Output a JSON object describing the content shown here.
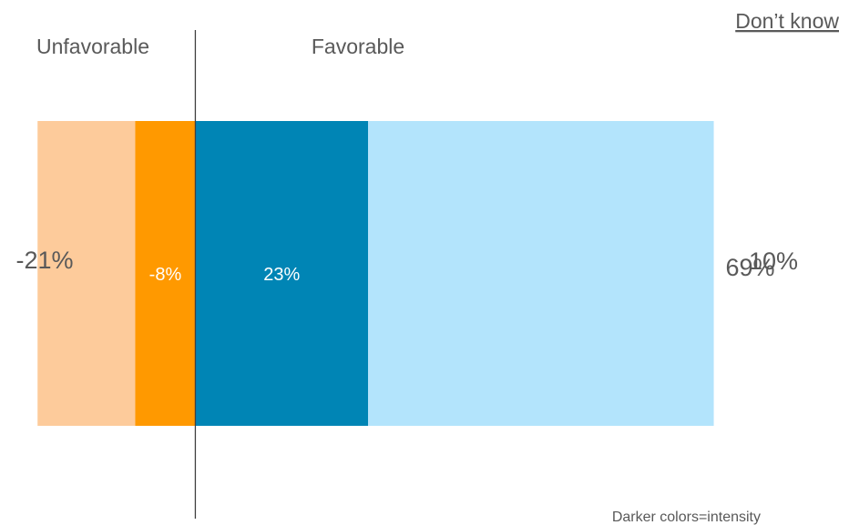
{
  "chart_data": {
    "type": "bar",
    "orientation": "horizontal",
    "stacked": "diverging",
    "categories": [
      ""
    ],
    "series": [
      {
        "name": "",
        "value": -21,
        "label": "-21%",
        "color": "#FDCB9B"
      },
      {
        "name": "",
        "value": -8,
        "label": "-8%",
        "color": "#FF9900"
      },
      {
        "name": "",
        "value": 23,
        "label": "23%",
        "color": "#0085B5"
      },
      {
        "name": "",
        "value": 69,
        "label": "69%",
        "color": "#B3E4FC"
      }
    ],
    "unfavorable_total": -21,
    "favorable_total": 69,
    "dont_know": 10,
    "dont_know_label": "10%",
    "headers": {
      "unfavorable": "Unfavorable",
      "favorable": "Favorable",
      "dont_know": "Don’t know"
    },
    "note": "Darker colors=intensity",
    "xlim": [
      -26,
      87
    ],
    "grid": false,
    "legend": "none"
  }
}
